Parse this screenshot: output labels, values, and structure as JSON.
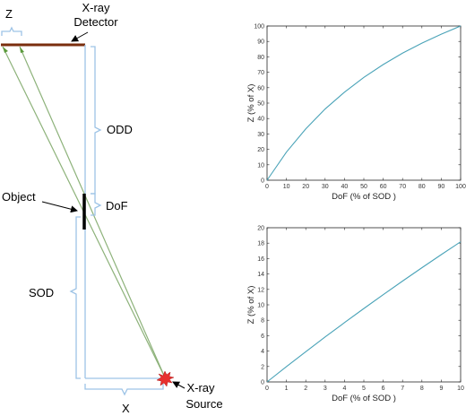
{
  "diagram": {
    "labels": {
      "z": "Z",
      "detector_line1": "X-ray",
      "detector_line2": "Detector",
      "odd": "ODD",
      "object": "Object",
      "dof": "DoF",
      "sod": "SOD",
      "x": "X",
      "source_line1": "X-ray",
      "source_line2": "Source"
    },
    "colors": {
      "detector": "#7a2e0e",
      "ray": "#8db27a",
      "ray_arrow": "#5a9a3a",
      "bracket": "#9dc3e6",
      "object": "#000000",
      "source": "#e8312f"
    }
  },
  "chart_data": [
    {
      "type": "line",
      "title": "",
      "xlabel": "DoF  (% of SOD )",
      "ylabel": "Z (% of X)",
      "xlim": [
        0,
        100
      ],
      "ylim": [
        0,
        100
      ],
      "xticks": [
        0,
        10,
        20,
        30,
        40,
        50,
        60,
        70,
        80,
        90,
        100
      ],
      "yticks": [
        0,
        10,
        20,
        30,
        40,
        50,
        60,
        70,
        80,
        90,
        100
      ],
      "color": "#4aa3b8",
      "series": [
        {
          "x": [
            0,
            10,
            20,
            30,
            40,
            50,
            60,
            70,
            80,
            90,
            100
          ],
          "y": [
            0,
            18.2,
            33.3,
            46.2,
            57.1,
            66.7,
            75.0,
            82.4,
            88.9,
            94.7,
            100
          ]
        }
      ]
    },
    {
      "type": "line",
      "title": "",
      "xlabel": "DoF  (% of SOD )",
      "ylabel": "Z (% of X)",
      "xlim": [
        0,
        10
      ],
      "ylim": [
        0,
        20
      ],
      "xticks": [
        0,
        1,
        2,
        3,
        4,
        5,
        6,
        7,
        8,
        9,
        10
      ],
      "yticks": [
        0,
        2,
        4,
        6,
        8,
        10,
        12,
        14,
        16,
        18,
        20
      ],
      "color": "#4aa3b8",
      "series": [
        {
          "x": [
            0,
            1,
            2,
            3,
            4,
            5,
            6,
            7,
            8,
            9,
            10
          ],
          "y": [
            0,
            1.98,
            3.92,
            5.83,
            7.69,
            9.52,
            11.32,
            13.08,
            14.81,
            16.51,
            18.18
          ]
        }
      ]
    }
  ]
}
